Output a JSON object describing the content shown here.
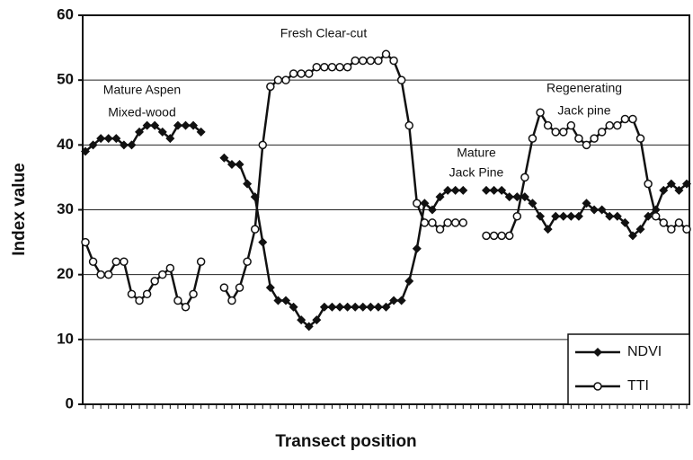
{
  "chart_data": {
    "type": "line",
    "xlabel": "Transect position",
    "ylabel": "Index value",
    "categories": [
      null,
      null,
      null,
      null,
      null,
      null,
      null,
      null,
      null,
      null,
      null,
      null,
      null,
      null,
      null,
      null,
      null,
      null,
      null,
      null,
      null,
      null,
      null,
      null,
      null,
      null,
      null,
      null,
      null,
      null,
      null,
      null,
      null,
      null,
      null,
      null,
      null,
      null,
      null,
      null,
      null,
      null,
      null,
      null,
      null,
      null,
      null,
      null,
      null,
      null,
      null,
      null,
      null,
      null,
      null,
      null,
      null,
      null,
      null,
      null,
      null,
      null,
      null,
      null,
      null,
      null,
      null,
      null,
      null,
      null,
      null,
      null,
      null,
      null,
      null,
      null,
      null,
      null,
      null
    ],
    "series": [
      {
        "name": "NDVI",
        "color": "#111111",
        "marker": "diamond",
        "values": [
          39,
          40,
          41,
          41,
          41,
          40,
          40,
          42,
          43,
          43,
          42,
          41,
          43,
          43,
          43,
          42,
          null,
          null,
          38,
          37,
          37,
          34,
          32,
          25,
          18,
          16,
          16,
          15,
          13,
          12,
          13,
          15,
          15,
          15,
          15,
          15,
          15,
          15,
          15,
          15,
          16,
          16,
          19,
          24,
          31,
          30,
          32,
          33,
          33,
          33,
          null,
          null,
          33,
          33,
          33,
          32,
          32,
          32,
          31,
          29,
          27,
          29,
          29,
          29,
          29,
          31,
          30,
          30,
          29,
          29,
          28,
          26,
          27,
          29,
          30,
          33,
          34,
          33,
          34
        ]
      },
      {
        "name": "TTI",
        "color": "#111111",
        "marker": "open-circle",
        "values": [
          25,
          22,
          20,
          20,
          22,
          22,
          17,
          16,
          17,
          19,
          20,
          21,
          16,
          15,
          17,
          22,
          null,
          null,
          18,
          16,
          18,
          22,
          27,
          40,
          49,
          50,
          50,
          51,
          51,
          51,
          52,
          52,
          52,
          52,
          52,
          53,
          53,
          53,
          53,
          54,
          53,
          50,
          43,
          31,
          28,
          28,
          27,
          28,
          28,
          28,
          null,
          null,
          26,
          26,
          26,
          26,
          29,
          35,
          41,
          45,
          43,
          42,
          42,
          43,
          41,
          40,
          41,
          42,
          43,
          43,
          44,
          44,
          41,
          34,
          29,
          28,
          27,
          28,
          27
        ]
      }
    ],
    "annotations": [
      "Mature Aspen",
      "Mixed-wood",
      "Fresh Clear-cut",
      "Mature",
      "Jack Pine",
      "Regenerating",
      "Jack pine"
    ],
    "ylim": [
      0,
      60
    ],
    "yticks": [
      0,
      10,
      20,
      30,
      40,
      50,
      60
    ],
    "grid": true,
    "legend": "lower right"
  }
}
